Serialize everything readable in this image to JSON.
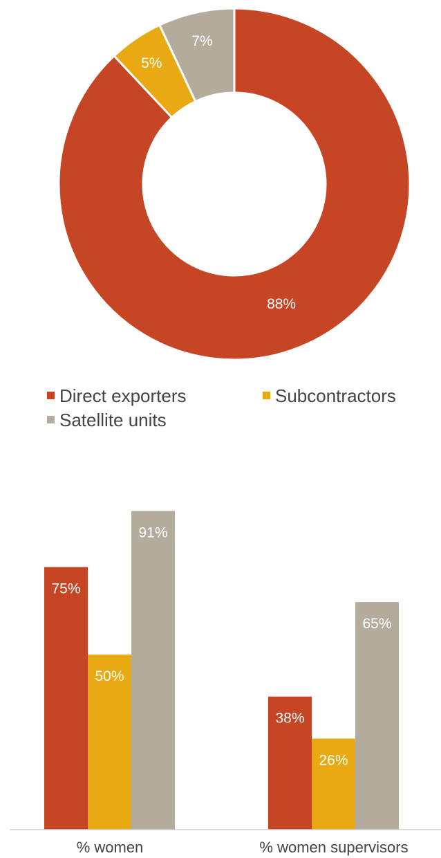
{
  "chart_data": [
    {
      "type": "pie",
      "donut": true,
      "categories": [
        "Direct exporters",
        "Subcontractors",
        "Satellite units"
      ],
      "values": [
        88,
        5,
        7
      ],
      "data_labels": [
        "88%",
        "5%",
        "7%"
      ],
      "colors": [
        "#C64524",
        "#E8A912",
        "#B3AC9C"
      ],
      "legend": {
        "placement": "bottom",
        "entries": [
          "Direct exporters",
          "Subcontractors",
          "Satellite units"
        ]
      }
    },
    {
      "type": "bar",
      "categories": [
        "% women",
        "% women supervisors"
      ],
      "series": [
        {
          "values": [
            75,
            38
          ],
          "labels": [
            "75%",
            "38%"
          ],
          "color": "#C64524"
        },
        {
          "values": [
            50,
            26
          ],
          "labels": [
            "50%",
            "26%"
          ],
          "color": "#E8A912"
        },
        {
          "values": [
            91,
            65
          ],
          "labels": [
            "91%",
            "65%"
          ],
          "color": "#B3AC9C"
        }
      ],
      "ylim": [
        0,
        100
      ],
      "grid": false
    }
  ]
}
